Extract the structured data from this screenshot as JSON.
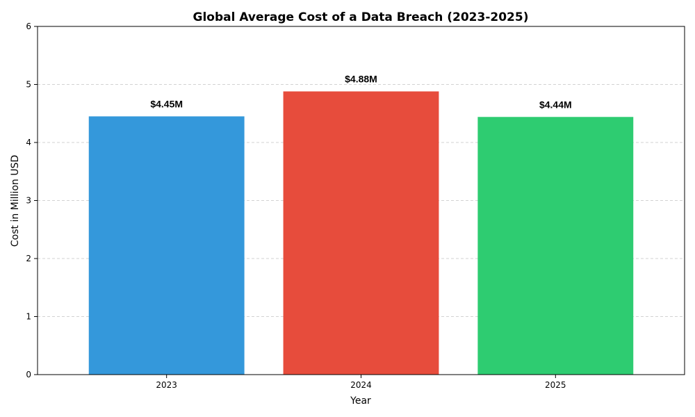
{
  "chart_data": {
    "type": "bar",
    "title": "Global Average Cost of a Data Breach (2023-2025)",
    "xlabel": "Year",
    "ylabel": "Cost in Million USD",
    "categories": [
      "2023",
      "2024",
      "2025"
    ],
    "values": [
      4.45,
      4.88,
      4.44
    ],
    "data_labels": [
      "$4.45M",
      "$4.88M",
      "$4.44M"
    ],
    "colors": [
      "#3498db",
      "#e74c3c",
      "#2ecc71"
    ],
    "ylim": [
      0,
      6
    ],
    "yticks": [
      "0",
      "1",
      "2",
      "3",
      "4",
      "5",
      "6"
    ],
    "grid": "y-dashed",
    "legend": "none"
  }
}
